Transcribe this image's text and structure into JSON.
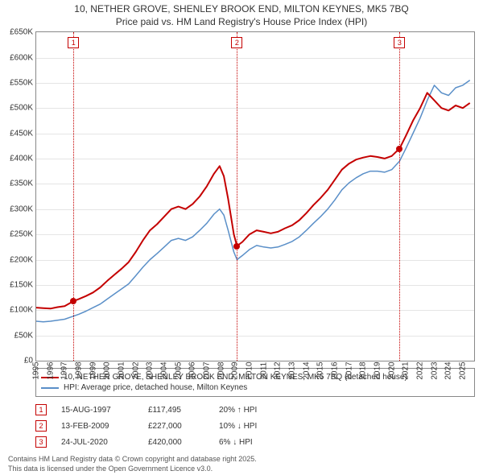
{
  "title_line1": "10, NETHER GROVE, SHENLEY BROOK END, MILTON KEYNES, MK5 7BQ",
  "title_line2": "Price paid vs. HM Land Registry's House Price Index (HPI)",
  "chart": {
    "type": "line",
    "background_color": "#ffffff",
    "grid_color": "#e5e5e5",
    "axis_color": "#888888",
    "ylim": [
      0,
      650000
    ],
    "ytick_step": 50000,
    "ytick_labels": [
      "£0",
      "£50K",
      "£100K",
      "£150K",
      "£200K",
      "£250K",
      "£300K",
      "£350K",
      "£400K",
      "£450K",
      "£500K",
      "£550K",
      "£600K",
      "£650K"
    ],
    "xlim": [
      1995,
      2025.8
    ],
    "xticks": [
      1995,
      1996,
      1997,
      1998,
      1999,
      2000,
      2001,
      2002,
      2003,
      2004,
      2005,
      2006,
      2007,
      2008,
      2009,
      2010,
      2011,
      2012,
      2013,
      2014,
      2015,
      2016,
      2017,
      2018,
      2019,
      2020,
      2021,
      2022,
      2023,
      2024,
      2025
    ],
    "label_fontsize": 10,
    "series": [
      {
        "name": "price_paid",
        "label": "10, NETHER GROVE, SHENLEY BROOK END, MILTON KEYNES, MK5 7BQ (detached house)",
        "color": "#c40000",
        "line_width": 2,
        "data": [
          [
            1995.0,
            105000
          ],
          [
            1995.5,
            104000
          ],
          [
            1996.0,
            103000
          ],
          [
            1996.5,
            106000
          ],
          [
            1997.0,
            108000
          ],
          [
            1997.6,
            117495
          ],
          [
            1998.0,
            122000
          ],
          [
            1998.5,
            128000
          ],
          [
            1999.0,
            135000
          ],
          [
            1999.5,
            145000
          ],
          [
            2000.0,
            158000
          ],
          [
            2000.5,
            170000
          ],
          [
            2001.0,
            182000
          ],
          [
            2001.5,
            195000
          ],
          [
            2002.0,
            215000
          ],
          [
            2002.5,
            238000
          ],
          [
            2003.0,
            258000
          ],
          [
            2003.5,
            270000
          ],
          [
            2004.0,
            285000
          ],
          [
            2004.5,
            300000
          ],
          [
            2005.0,
            305000
          ],
          [
            2005.5,
            300000
          ],
          [
            2006.0,
            310000
          ],
          [
            2006.5,
            325000
          ],
          [
            2007.0,
            345000
          ],
          [
            2007.5,
            370000
          ],
          [
            2007.9,
            385000
          ],
          [
            2008.2,
            365000
          ],
          [
            2008.5,
            320000
          ],
          [
            2008.9,
            250000
          ],
          [
            2009.12,
            227000
          ],
          [
            2009.5,
            235000
          ],
          [
            2010.0,
            250000
          ],
          [
            2010.5,
            258000
          ],
          [
            2011.0,
            255000
          ],
          [
            2011.5,
            252000
          ],
          [
            2012.0,
            255000
          ],
          [
            2012.5,
            262000
          ],
          [
            2013.0,
            268000
          ],
          [
            2013.5,
            278000
          ],
          [
            2014.0,
            292000
          ],
          [
            2014.5,
            308000
          ],
          [
            2015.0,
            322000
          ],
          [
            2015.5,
            338000
          ],
          [
            2016.0,
            358000
          ],
          [
            2016.5,
            378000
          ],
          [
            2017.0,
            390000
          ],
          [
            2017.5,
            398000
          ],
          [
            2018.0,
            402000
          ],
          [
            2018.5,
            405000
          ],
          [
            2019.0,
            403000
          ],
          [
            2019.5,
            400000
          ],
          [
            2020.0,
            405000
          ],
          [
            2020.56,
            420000
          ],
          [
            2021.0,
            445000
          ],
          [
            2021.5,
            475000
          ],
          [
            2022.0,
            500000
          ],
          [
            2022.5,
            530000
          ],
          [
            2023.0,
            515000
          ],
          [
            2023.5,
            500000
          ],
          [
            2024.0,
            495000
          ],
          [
            2024.5,
            505000
          ],
          [
            2025.0,
            500000
          ],
          [
            2025.5,
            510000
          ]
        ]
      },
      {
        "name": "hpi",
        "label": "HPI: Average price, detached house, Milton Keynes",
        "color": "#5a8fc8",
        "line_width": 1.5,
        "data": [
          [
            1995.0,
            78000
          ],
          [
            1995.5,
            77000
          ],
          [
            1996.0,
            78000
          ],
          [
            1996.5,
            80000
          ],
          [
            1997.0,
            82000
          ],
          [
            1997.6,
            88000
          ],
          [
            1998.0,
            92000
          ],
          [
            1998.5,
            98000
          ],
          [
            1999.0,
            105000
          ],
          [
            1999.5,
            112000
          ],
          [
            2000.0,
            122000
          ],
          [
            2000.5,
            132000
          ],
          [
            2001.0,
            142000
          ],
          [
            2001.5,
            152000
          ],
          [
            2002.0,
            168000
          ],
          [
            2002.5,
            185000
          ],
          [
            2003.0,
            200000
          ],
          [
            2003.5,
            212000
          ],
          [
            2004.0,
            225000
          ],
          [
            2004.5,
            238000
          ],
          [
            2005.0,
            242000
          ],
          [
            2005.5,
            238000
          ],
          [
            2006.0,
            245000
          ],
          [
            2006.5,
            258000
          ],
          [
            2007.0,
            272000
          ],
          [
            2007.5,
            290000
          ],
          [
            2007.9,
            300000
          ],
          [
            2008.2,
            288000
          ],
          [
            2008.5,
            258000
          ],
          [
            2008.9,
            215000
          ],
          [
            2009.12,
            200000
          ],
          [
            2009.5,
            208000
          ],
          [
            2010.0,
            220000
          ],
          [
            2010.5,
            228000
          ],
          [
            2011.0,
            225000
          ],
          [
            2011.5,
            223000
          ],
          [
            2012.0,
            225000
          ],
          [
            2012.5,
            230000
          ],
          [
            2013.0,
            236000
          ],
          [
            2013.5,
            245000
          ],
          [
            2014.0,
            258000
          ],
          [
            2014.5,
            272000
          ],
          [
            2015.0,
            285000
          ],
          [
            2015.5,
            300000
          ],
          [
            2016.0,
            318000
          ],
          [
            2016.5,
            338000
          ],
          [
            2017.0,
            352000
          ],
          [
            2017.5,
            362000
          ],
          [
            2018.0,
            370000
          ],
          [
            2018.5,
            375000
          ],
          [
            2019.0,
            375000
          ],
          [
            2019.5,
            373000
          ],
          [
            2020.0,
            378000
          ],
          [
            2020.56,
            395000
          ],
          [
            2021.0,
            420000
          ],
          [
            2021.5,
            450000
          ],
          [
            2022.0,
            480000
          ],
          [
            2022.5,
            515000
          ],
          [
            2023.0,
            545000
          ],
          [
            2023.5,
            530000
          ],
          [
            2024.0,
            525000
          ],
          [
            2024.5,
            540000
          ],
          [
            2025.0,
            545000
          ],
          [
            2025.5,
            555000
          ]
        ]
      }
    ],
    "event_markers": [
      {
        "n": "1",
        "x": 1997.62,
        "line_color": "#c40000",
        "dot_y": 117495
      },
      {
        "n": "2",
        "x": 2009.12,
        "line_color": "#c40000",
        "dot_y": 227000
      },
      {
        "n": "3",
        "x": 2020.56,
        "line_color": "#c40000",
        "dot_y": 420000
      }
    ]
  },
  "legend": [
    {
      "color": "#c40000",
      "text": "10, NETHER GROVE, SHENLEY BROOK END, MILTON KEYNES, MK5 7BQ (detached house)"
    },
    {
      "color": "#5a8fc8",
      "text": "HPI: Average price, detached house, Milton Keynes"
    }
  ],
  "events": [
    {
      "n": "1",
      "date": "15-AUG-1997",
      "price": "£117,495",
      "pct": "20% ↑ HPI"
    },
    {
      "n": "2",
      "date": "13-FEB-2009",
      "price": "£227,000",
      "pct": "10% ↓ HPI"
    },
    {
      "n": "3",
      "date": "24-JUL-2020",
      "price": "£420,000",
      "pct": "6% ↓ HPI"
    }
  ],
  "footnote_line1": "Contains HM Land Registry data © Crown copyright and database right 2025.",
  "footnote_line2": "This data is licensed under the Open Government Licence v3.0."
}
